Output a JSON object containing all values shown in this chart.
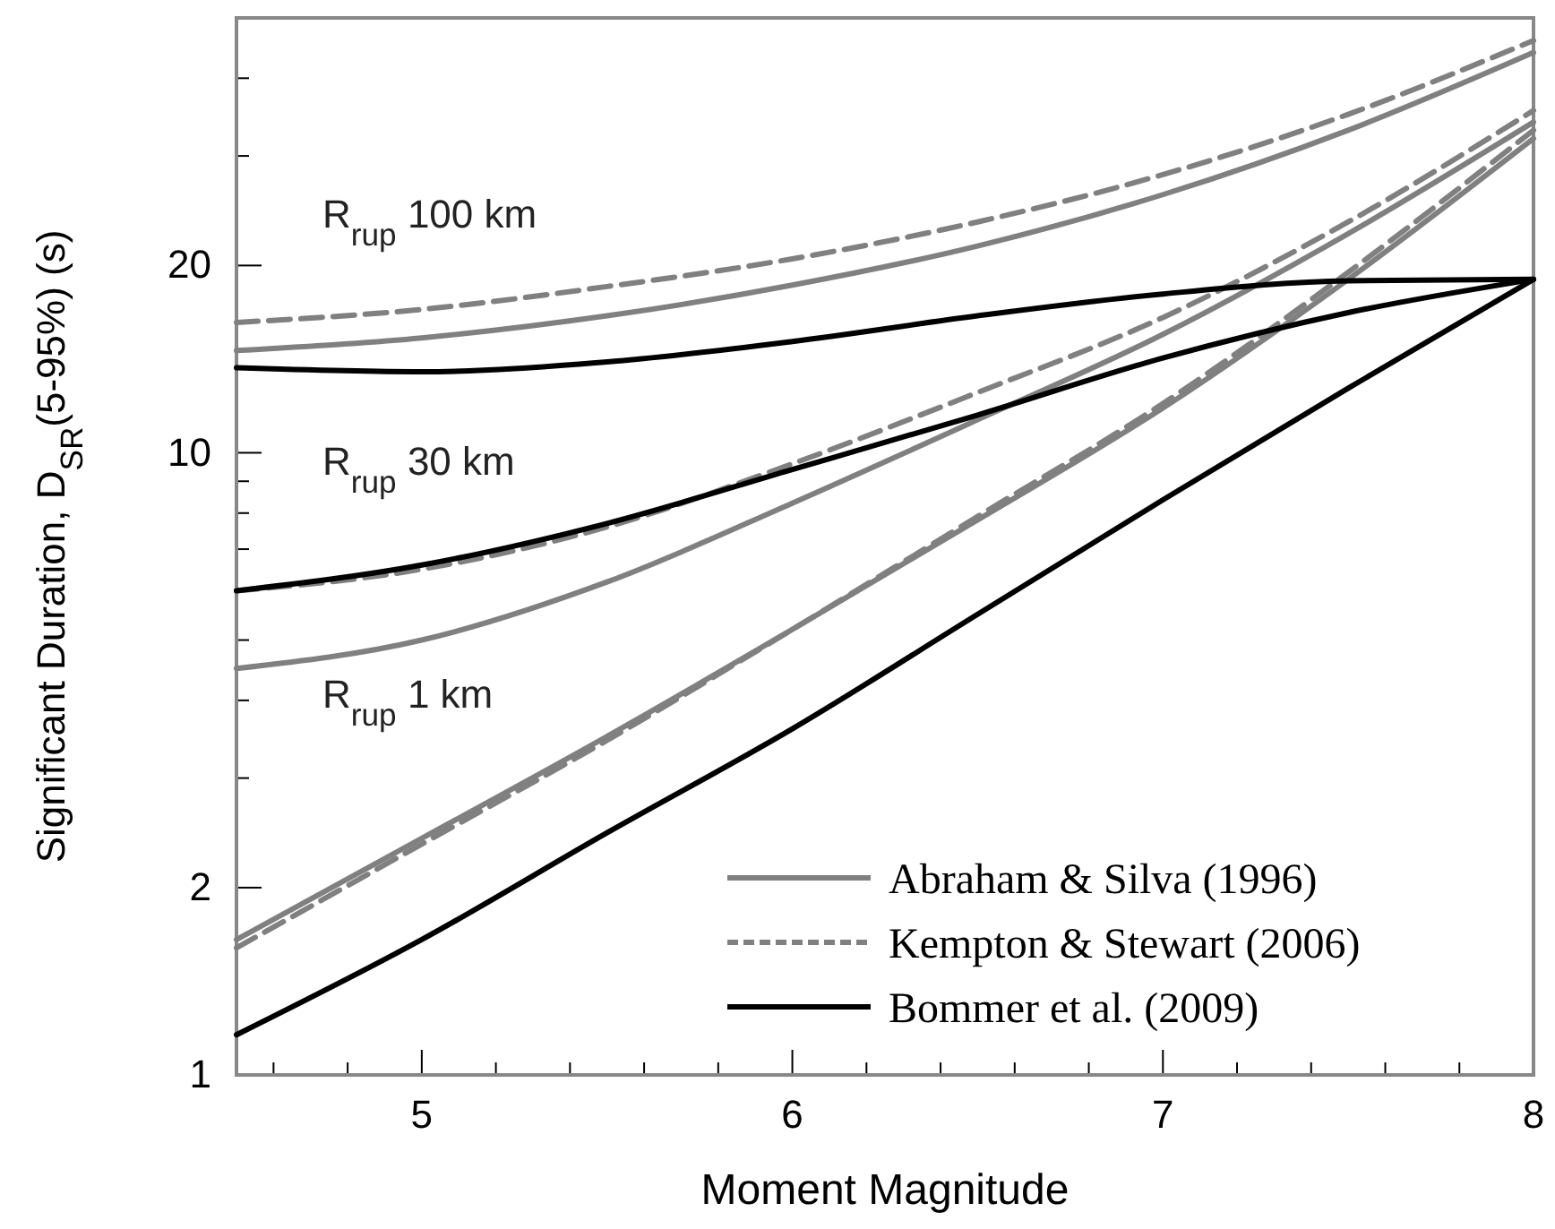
{
  "chart_data": {
    "type": "line",
    "xlabel": "Moment Magnitude",
    "ylabel": "Significant Duration, D$_{SR}$(5-95%) (s)",
    "x": [
      4.5,
      5,
      5.5,
      6,
      6.5,
      7,
      7.5,
      8
    ],
    "log": "y",
    "xlim": [
      4.5,
      8
    ],
    "ylim": [
      1,
      50
    ],
    "xticks": [
      {
        "value": 4.6,
        "label": null
      },
      {
        "value": 4.8,
        "label": null
      },
      5,
      {
        "value": 5.2,
        "label": null
      },
      {
        "value": 5.4,
        "label": null
      },
      {
        "value": 5.6,
        "label": null
      },
      {
        "value": 5.8,
        "label": null
      },
      6,
      {
        "value": 6.2,
        "label": null
      },
      {
        "value": 6.4,
        "label": null
      },
      {
        "value": 6.6,
        "label": null
      },
      {
        "value": 6.8,
        "label": null
      },
      7,
      {
        "value": 7.2,
        "label": null
      },
      {
        "value": 7.4,
        "label": null
      },
      {
        "value": 7.6,
        "label": null
      },
      {
        "value": 7.8,
        "label": null
      },
      8
    ],
    "yticks": [
      1,
      2,
      {
        "value": 3,
        "label": null
      },
      {
        "value": 4,
        "label": null
      },
      {
        "value": 5,
        "label": null
      },
      {
        "value": 6,
        "label": null
      },
      {
        "value": 7,
        "label": null
      },
      {
        "value": 8,
        "label": null
      },
      {
        "value": 9,
        "label": null
      },
      10,
      20,
      {
        "value": 30,
        "label": null
      },
      {
        "value": 40,
        "label": null
      }
    ],
    "grid": false,
    "legend": "bottom right",
    "series": [
      {
        "name": "Abraham & Silva (1996)",
        "color": "#808080",
        "line_style": "solid",
        "values": [
          14.6,
          15.3,
          16.6,
          18.6,
          21.5,
          26,
          33,
          44
        ]
      },
      {
        "color": "#808080",
        "line_style": "solid",
        "values": [
          4.5,
          5.0,
          6.2,
          8.3,
          11.3,
          15.5,
          22.5,
          34
        ]
      },
      {
        "color": "#808080",
        "line_style": "solid",
        "values": [
          1.65,
          2.4,
          3.5,
          5.2,
          7.8,
          11.8,
          19,
          32
        ]
      },
      {
        "name": "Kempton & Stewart (2006)",
        "color": "#808080",
        "line_style": "dashed",
        "values": [
          16.2,
          17,
          18.5,
          20.5,
          23.5,
          28,
          35,
          46
        ]
      },
      {
        "color": "#808080",
        "line_style": "dashed",
        "values": [
          6.0,
          6.5,
          7.6,
          9.6,
          12.5,
          16.5,
          23.5,
          35.5
        ]
      },
      {
        "color": "#808080",
        "line_style": "dashed",
        "values": [
          1.6,
          2.35,
          3.45,
          5.2,
          7.9,
          12,
          19.5,
          33
        ]
      },
      {
        "name": "Bommer et al. (2009)",
        "color": "#000000",
        "line_style": "solid",
        "values": [
          13.7,
          13.5,
          14.0,
          15.1,
          16.6,
          18.0,
          18.9,
          19
        ]
      },
      {
        "color": "#000000",
        "line_style": "solid",
        "values": [
          6.0,
          6.6,
          7.7,
          9.4,
          11.5,
          14.2,
          16.8,
          19
        ]
      },
      {
        "color": "#000000",
        "line_style": "solid",
        "values": [
          1.16,
          1.65,
          2.45,
          3.6,
          5.5,
          8.4,
          12.7,
          19
        ]
      }
    ],
    "annotations": [
      "R$_{rup}$ 100 km",
      "R$_{rup}$ 30 km",
      "R$_{rup}$ 1 km"
    ]
  }
}
